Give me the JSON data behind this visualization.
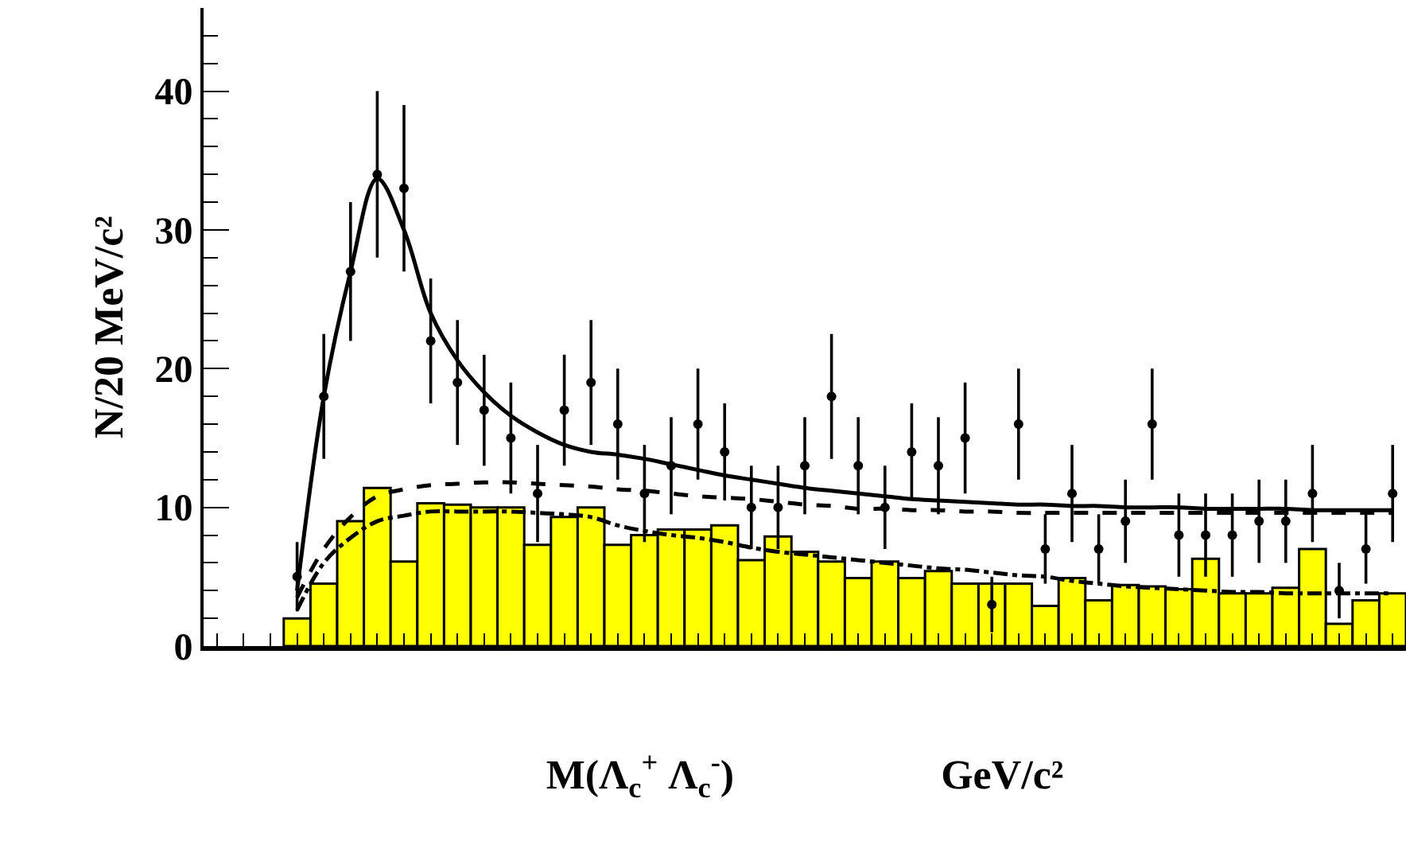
{
  "chart_data": {
    "type": "bar",
    "xlabel": "M(Λ$_{c}$$^{+}$ Λ$_{c}$$^{-}$)                    GeV/c²",
    "ylabel": "N/20 MeV/c²",
    "categories": [
      null,
      null,
      null,
      null,
      null,
      null,
      null,
      null,
      null,
      null,
      null,
      null,
      null,
      null,
      null,
      null,
      null,
      null,
      null,
      null,
      null,
      null,
      null,
      null,
      null,
      null,
      null,
      null,
      null,
      null,
      null,
      null,
      null,
      null,
      null,
      null,
      null,
      null,
      null,
      null,
      null,
      null,
      null,
      null,
      null
    ],
    "ylim": [
      0,
      46
    ],
    "yticks": [
      0,
      10,
      20,
      30,
      40
    ],
    "tick_labels": "y",
    "series": [
      {
        "color": "#ffff00",
        "values": [
          null,
          null,
          null,
          2,
          4.5,
          9,
          11.4,
          6.1,
          10.3,
          10.2,
          10,
          10,
          7.3,
          9.3,
          10,
          7.3,
          8,
          8.4,
          8.4,
          8.7,
          6.2,
          7.9,
          6.8,
          6.1,
          4.9,
          6.1,
          4.9,
          5.4,
          4.5,
          4.5,
          4.5,
          2.9,
          4.9,
          3.3,
          4.4,
          4.3,
          4.1,
          6.3,
          3.8,
          3.8,
          4.2,
          7,
          1.6,
          3.3,
          3.8
        ]
      },
      {
        "type": "scatter",
        "color": "#000000",
        "marker": "circle",
        "values": [
          null,
          null,
          null,
          5,
          18,
          27,
          34,
          33,
          22,
          19,
          17,
          15,
          11,
          17,
          19,
          16,
          11,
          13,
          16,
          14,
          10,
          10,
          13,
          18,
          13,
          10,
          14,
          13,
          15,
          3,
          16,
          7,
          11,
          7,
          9,
          16,
          8,
          8,
          8,
          9,
          9,
          11,
          4,
          7,
          11
        ],
        "errors": [
          null,
          null,
          null,
          2.5,
          4.5,
          5,
          6,
          6,
          4.5,
          4.5,
          4,
          4,
          3.5,
          4,
          4.5,
          4,
          3.5,
          3.5,
          4,
          3.5,
          3,
          3,
          3.5,
          4.5,
          3.5,
          3,
          3.5,
          3.5,
          4,
          2,
          4,
          2.5,
          3.5,
          2.5,
          3,
          4,
          3,
          3,
          3,
          3,
          3,
          3.5,
          2,
          2.5,
          3.5
        ]
      },
      {
        "type": "line",
        "color": "#000000",
        "line_style": "solid",
        "values": [
          null,
          null,
          null,
          4,
          18,
          27,
          33.7,
          30,
          24,
          20.6,
          18.3,
          16.6,
          15.4,
          14.5,
          14,
          13.8,
          13.5,
          13.1,
          12.7,
          12.3,
          12,
          11.7,
          11.4,
          11.2,
          11,
          10.8,
          10.6,
          10.5,
          10.4,
          10.3,
          10.2,
          10.2,
          10.1,
          10.1,
          10,
          10,
          10,
          9.9,
          9.9,
          9.9,
          9.9,
          9.8,
          9.8,
          9.8,
          9.8
        ]
      },
      {
        "type": "line",
        "color": "#000000",
        "line_style": "dashed",
        "values": [
          null,
          null,
          null,
          3.5,
          7,
          9.3,
          10.8,
          11.3,
          11.6,
          11.7,
          11.8,
          11.8,
          11.7,
          11.6,
          11.5,
          11.3,
          11.2,
          11,
          10.8,
          10.7,
          10.6,
          10.4,
          10.2,
          10.1,
          9.9,
          9.9,
          9.8,
          9.8,
          9.7,
          9.7,
          9.6,
          9.6,
          9.6,
          9.6,
          9.6,
          9.6,
          9.6,
          9.6,
          9.6,
          9.6,
          9.6,
          9.6,
          9.6,
          9.6,
          9.6
        ]
      },
      {
        "type": "line",
        "color": "#000000",
        "line_style": "dashdot",
        "values": [
          null,
          null,
          null,
          2.6,
          6,
          7.8,
          9,
          9.4,
          9.7,
          9.7,
          9.7,
          9.7,
          9.6,
          9.5,
          9.3,
          8.7,
          8.3,
          8,
          7.8,
          7.5,
          7.1,
          6.8,
          6.6,
          6.4,
          6.2,
          6,
          5.8,
          5.6,
          5.5,
          5.3,
          5.1,
          5,
          4.7,
          4.5,
          4.3,
          4.2,
          4.1,
          4,
          3.9,
          3.9,
          3.8,
          3.8,
          3.8,
          3.8,
          3.8
        ]
      }
    ]
  }
}
